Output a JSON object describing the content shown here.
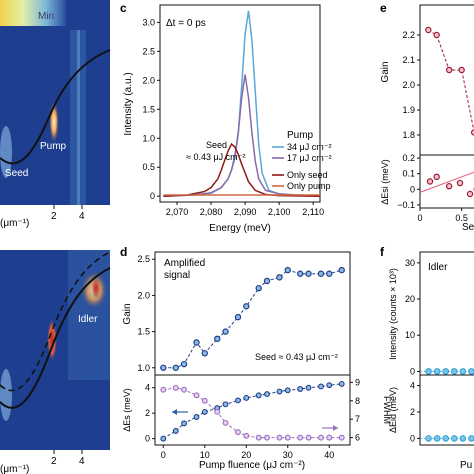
{
  "panel_letters": {
    "c": "c",
    "d": "d",
    "e": "e",
    "f": "f"
  },
  "heatmap_left": {
    "colorbar_label": "Min",
    "top_x_ticks": [
      "2",
      "4"
    ],
    "top_axis_unit": "(μm⁻¹)",
    "top_labels": {
      "pump": "Pump",
      "seed": "Seed"
    },
    "bottom_x_ticks": [
      "2",
      "4"
    ],
    "bottom_axis_unit": "(μm⁻¹)",
    "bottom_labels": {
      "idler": "Idler"
    }
  },
  "colors": {
    "heat_bg": "#1e3f8f",
    "seed34": "#5aa7d6",
    "pump17": "#8a6aa8",
    "only_seed": "#8b1a1a",
    "only_pump": "#d2683f",
    "gain_marker": "#1f3f8c",
    "purple_marker": "#9b6fc0",
    "e_marker": "#9e1b32",
    "f_marker": "#2a9fd6"
  },
  "chart_data": [
    {
      "panel": "c",
      "type": "line",
      "annotation": "Δt = 0 ps",
      "xlabel": "Energy (meV)",
      "ylabel": "Intensity (a.u.)",
      "xlim": [
        2065,
        2112
      ],
      "ylim": [
        -0.1,
        3.3
      ],
      "x_ticks": [
        "2,070",
        "2,080",
        "2,090",
        "2,100",
        "2,110"
      ],
      "x_tick_values": [
        2070,
        2080,
        2090,
        2100,
        2110
      ],
      "y_ticks": [
        "0",
        "0.5",
        "1.0",
        "1.5",
        "2.0",
        "2.5",
        "3.0"
      ],
      "y_tick_values": [
        0,
        0.5,
        1.0,
        1.5,
        2.0,
        2.5,
        3.0
      ],
      "legend_title": "Pump",
      "legend": [
        "34 μJ cm⁻²",
        "17 μJ cm⁻²",
        "Only seed",
        "Only pump"
      ],
      "seed_label_line1": "Seed",
      "seed_label_line2": "≈ 0.43 μJ cm⁻²",
      "series": [
        {
          "name": "34 μJ cm⁻²",
          "x": [
            2066,
            2075,
            2080,
            2083,
            2085,
            2086,
            2087,
            2088,
            2089,
            2090,
            2091,
            2092,
            2093,
            2094,
            2095,
            2097,
            2100,
            2105,
            2112
          ],
          "y": [
            0,
            0.02,
            0.05,
            0.15,
            0.3,
            0.45,
            0.65,
            1.1,
            1.9,
            2.8,
            3.2,
            2.7,
            1.8,
            0.9,
            0.4,
            0.1,
            0.04,
            0.02,
            0.01
          ]
        },
        {
          "name": "17 μJ cm⁻²",
          "x": [
            2066,
            2075,
            2080,
            2083,
            2085,
            2086,
            2087,
            2088,
            2089,
            2090,
            2091,
            2092,
            2093,
            2094,
            2096,
            2100,
            2105,
            2112
          ],
          "y": [
            0,
            0.02,
            0.06,
            0.15,
            0.3,
            0.45,
            0.7,
            1.1,
            1.7,
            2.1,
            1.7,
            1.1,
            0.6,
            0.3,
            0.1,
            0.04,
            0.02,
            0.01
          ]
        },
        {
          "name": "Only seed",
          "x": [
            2066,
            2073,
            2078,
            2080,
            2082,
            2083,
            2084,
            2085,
            2086,
            2087,
            2088,
            2089,
            2090,
            2091,
            2093,
            2096,
            2100,
            2112
          ],
          "y": [
            0,
            0.02,
            0.08,
            0.15,
            0.3,
            0.45,
            0.62,
            0.78,
            0.9,
            0.85,
            0.72,
            0.55,
            0.4,
            0.25,
            0.1,
            0.03,
            0.01,
            0
          ]
        },
        {
          "name": "Only pump",
          "x": [
            2066,
            2112
          ],
          "y": [
            0.02,
            0.02
          ]
        }
      ]
    },
    {
      "panel": "d-top",
      "type": "line",
      "annotation_line1": "Amplified",
      "annotation_line2": "signal",
      "ylabel": "Gain",
      "xlim": [
        -2,
        45
      ],
      "ylim": [
        0.9,
        2.6
      ],
      "y_ticks": [
        "1.0",
        "1.5",
        "2.0",
        "2.5"
      ],
      "y_tick_values": [
        1.0,
        1.5,
        2.0,
        2.5
      ],
      "seed_note": "Seed ≈ 0.43 μJ cm⁻²",
      "x": [
        0,
        3,
        5,
        8,
        10,
        13,
        15,
        18,
        20,
        23,
        25,
        28,
        30,
        33,
        35,
        38,
        40,
        43
      ],
      "y": [
        1.0,
        1.0,
        1.05,
        1.35,
        1.2,
        1.4,
        1.5,
        1.7,
        1.85,
        2.1,
        2.2,
        2.25,
        2.35,
        2.3,
        2.3,
        2.3,
        2.3,
        2.35
      ]
    },
    {
      "panel": "d-bottom",
      "type": "scatter",
      "xlabel": "Pump fluence (μJ cm⁻²)",
      "ylabel_left": "ΔEs (meV)",
      "ylabel_right": "FWHM",
      "xlim": [
        -2,
        45
      ],
      "ylim": [
        -0.5,
        5
      ],
      "y2lim": [
        5.6,
        9.4
      ],
      "x_ticks": [
        "0",
        "10",
        "20",
        "30",
        "40"
      ],
      "x_tick_values": [
        0,
        10,
        20,
        30,
        40
      ],
      "y_ticks": [
        "0",
        "2",
        "4"
      ],
      "y_tick_values": [
        0,
        2,
        4
      ],
      "y2_ticks": [
        "6",
        "7",
        "8",
        "9"
      ],
      "y2_tick_values": [
        6,
        7,
        8,
        9
      ],
      "series": [
        {
          "name": "ΔEs",
          "x": [
            0,
            3,
            5,
            8,
            10,
            13,
            15,
            18,
            20,
            23,
            25,
            28,
            30,
            33,
            35,
            38,
            40,
            43
          ],
          "y": [
            0,
            0.6,
            1.2,
            1.7,
            2.1,
            2.4,
            2.7,
            3.0,
            3.2,
            3.4,
            3.5,
            3.7,
            3.8,
            3.9,
            4.0,
            4.1,
            4.2,
            4.3
          ]
        },
        {
          "name": "FWHM",
          "x": [
            0,
            3,
            5,
            8,
            10,
            13,
            15,
            18,
            20,
            23,
            25,
            28,
            30,
            33,
            35,
            38,
            40,
            43
          ],
          "y": [
            8.6,
            8.7,
            8.6,
            8.3,
            8.0,
            7.4,
            6.8,
            6.3,
            6.1,
            6.0,
            6.0,
            6.0,
            6.0,
            6.0,
            6.0,
            6.0,
            6.0,
            6.0
          ]
        }
      ]
    },
    {
      "panel": "e-top",
      "type": "line",
      "ylabel": "Gain",
      "ylim": [
        1.72,
        2.32
      ],
      "y_ticks": [
        "1.8",
        "1.9",
        "2.0",
        "2.1",
        "2.2"
      ],
      "y_tick_values": [
        1.8,
        1.9,
        2.0,
        2.1,
        2.2
      ],
      "x": [
        0.1,
        0.2,
        0.35,
        0.5,
        0.65
      ],
      "y": [
        2.22,
        2.2,
        2.06,
        2.06,
        1.81
      ]
    },
    {
      "panel": "e-bottom",
      "type": "scatter",
      "ylabel": "ΔEsi (meV)",
      "xlabel_partial": "Se",
      "ylim": [
        -0.12,
        0.22
      ],
      "x_ticks": [
        "0",
        "0.5"
      ],
      "x_tick_values": [
        0,
        0.5
      ],
      "y_ticks": [
        "−0.1",
        "0",
        "0.1",
        "0.2"
      ],
      "y_tick_values": [
        -0.1,
        0,
        0.1,
        0.2
      ],
      "x": [
        0.12,
        0.2,
        0.35,
        0.48,
        0.6,
        0.68
      ],
      "y": [
        0.05,
        0.08,
        0.02,
        0.04,
        -0.03,
        0.0
      ]
    },
    {
      "panel": "f-top",
      "type": "scatter",
      "annotation": "Idler",
      "ylabel": "Intensity (counts × 10³)",
      "ylim": [
        -1,
        33
      ],
      "y_ticks": [
        "0",
        "10",
        "20",
        "30"
      ],
      "y_tick_values": [
        0,
        10,
        20,
        30
      ],
      "x": [
        1,
        2,
        3,
        4,
        5,
        6
      ],
      "y": [
        0,
        0,
        0,
        0,
        0,
        0
      ]
    },
    {
      "panel": "f-bottom",
      "type": "scatter",
      "ylabel": "ΔEid (meV)",
      "xlabel_partial": "Pu",
      "ylim": [
        -0.5,
        4.8
      ],
      "y_ticks": [
        "0",
        "2",
        "4"
      ],
      "y_tick_values": [
        0,
        2,
        4
      ],
      "x": [
        1,
        2,
        3,
        4,
        5,
        6
      ],
      "y": [
        0,
        0,
        0,
        0,
        0,
        0
      ]
    }
  ]
}
